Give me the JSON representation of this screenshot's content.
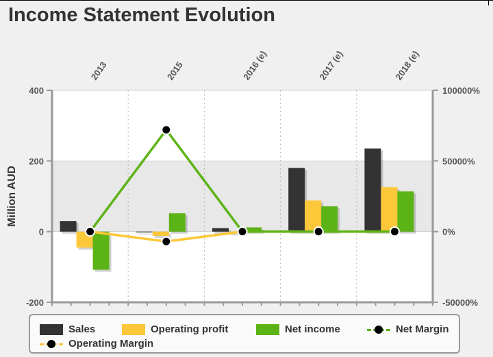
{
  "title": "Income Statement Evolution",
  "chart_data": {
    "type": "bar",
    "categories": [
      "2013",
      "2015",
      "2016 (e)",
      "2017 (e)",
      "2018 (e)"
    ],
    "series": [
      {
        "name": "Sales",
        "type": "bar",
        "axis": "left",
        "color": "#333333",
        "values": [
          30,
          -2,
          10,
          180,
          235
        ]
      },
      {
        "name": "Operating profit",
        "type": "bar",
        "axis": "left",
        "color": "#fcc738",
        "values": [
          -45,
          -12,
          -5,
          88,
          126
        ]
      },
      {
        "name": "Net income",
        "type": "bar",
        "axis": "left",
        "color": "#5cb315",
        "values": [
          -108,
          52,
          12,
          72,
          114
        ]
      },
      {
        "name": "Net Margin",
        "type": "line",
        "axis": "right",
        "color": "#5cb315",
        "values": [
          0,
          72000,
          0,
          0,
          0
        ]
      },
      {
        "name": "Operating Margin",
        "type": "line",
        "axis": "right",
        "color": "#fcc738",
        "values": [
          0,
          -7000,
          0,
          0,
          0
        ]
      }
    ],
    "ylabel": "Million AUD",
    "ylim": [
      -200,
      400
    ],
    "yticks": [
      "-200",
      "0",
      "200",
      "400"
    ],
    "y2lim": [
      -50000,
      100000
    ],
    "y2ticks": [
      "-50000%",
      "0%",
      "50000%",
      "100000%"
    ],
    "grid": true,
    "legend": "bottom"
  }
}
